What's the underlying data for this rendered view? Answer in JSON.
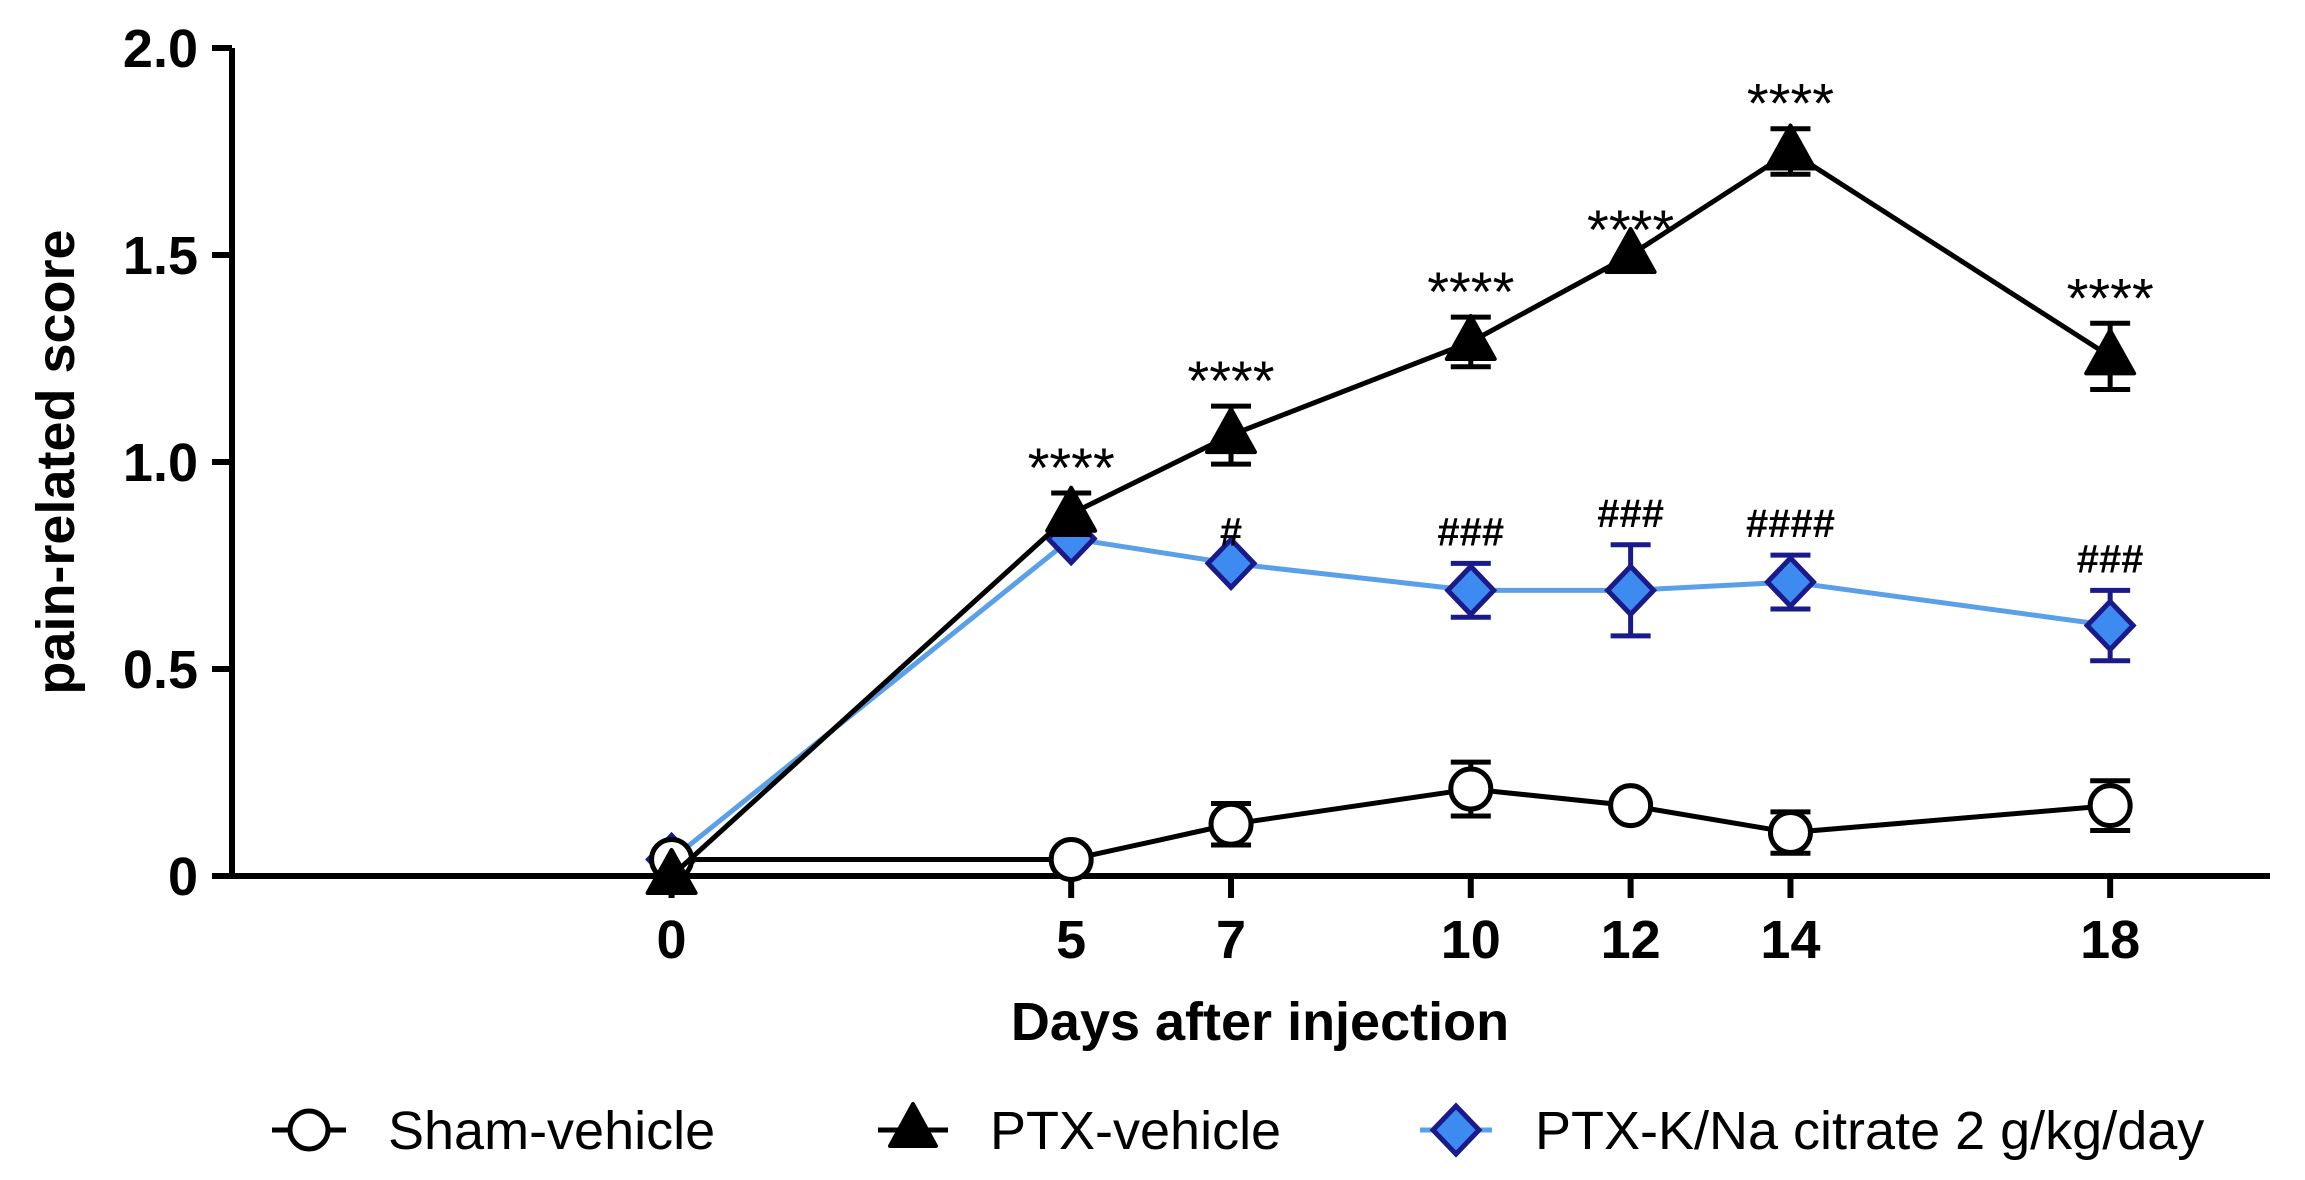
{
  "chart_data": {
    "type": "line",
    "xlabel": "Days after injection",
    "ylabel": "pain-related score",
    "x": [
      0,
      5,
      7,
      10,
      12,
      14,
      18
    ],
    "xlim": [
      -5.5,
      20
    ],
    "ylim": [
      0,
      2.0
    ],
    "yticks": [
      0,
      0.5,
      1.0,
      1.5,
      2.0
    ],
    "ytick_labels": [
      "0",
      "0.5",
      "1.0",
      "1.5",
      "2.0"
    ],
    "xtick_labels": [
      "0",
      "5",
      "7",
      "10",
      "12",
      "14",
      "18"
    ],
    "series": [
      {
        "name": "Sham-vehicle",
        "marker": "circle",
        "line_color": "#000000",
        "fill_color": "#ffffff",
        "edge_color": "#000000",
        "values": [
          0.04,
          0.04,
          0.125,
          0.21,
          0.17,
          0.105,
          0.17
        ],
        "errors": [
          0,
          0,
          0.05,
          0.065,
          0,
          0.05,
          0.06
        ],
        "annotations": []
      },
      {
        "name": "PTX-vehicle",
        "marker": "triangle",
        "line_color": "#000000",
        "fill_color": "#000000",
        "edge_color": "#000000",
        "values": [
          0.0,
          0.875,
          1.065,
          1.29,
          1.5,
          1.75,
          1.255
        ],
        "errors": [
          0,
          0.05,
          0.07,
          0.06,
          0,
          0.055,
          0.08
        ],
        "annotations": [
          "",
          "****",
          "****",
          "****",
          "****",
          "****",
          "****"
        ]
      },
      {
        "name": "PTX-K/Na citrate 2 g/kg/day",
        "marker": "diamond",
        "line_color": "#5aa0e8",
        "fill_color": "#3d8bf0",
        "edge_color": "#1a1a8a",
        "values": [
          0.04,
          0.815,
          0.755,
          0.69,
          0.69,
          0.71,
          0.605
        ],
        "errors": [
          0,
          0,
          0,
          0.065,
          0.11,
          0.065,
          0.085
        ],
        "annotations": [
          "",
          "",
          "#",
          "###",
          "###",
          "####",
          "###"
        ]
      }
    ]
  }
}
